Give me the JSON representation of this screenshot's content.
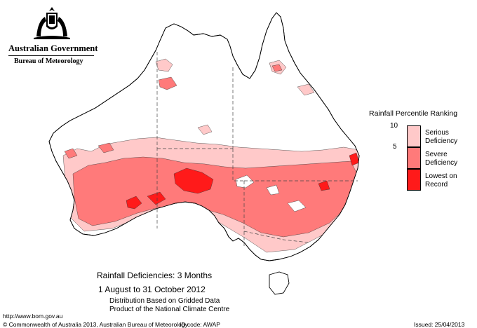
{
  "header": {
    "government": "Australian Government",
    "bureau": "Bureau of Meteorology"
  },
  "map": {
    "title": "Rainfall Deficiencies: 3 Months",
    "period": "1 August to 31 October 2012",
    "subtitle_line1": "Distribution Based on Gridded Data",
    "subtitle_line2": "Product of the National Climate Centre"
  },
  "legend": {
    "title": "Rainfall Percentile Ranking",
    "ticks": [
      "10",
      "5"
    ],
    "classes": [
      {
        "label_line1": "Serious",
        "label_line2": "Deficiency",
        "color": "#ffc9c9"
      },
      {
        "label_line1": "Severe",
        "label_line2": "Deficiency",
        "color": "#ff7a7a"
      },
      {
        "label_line1": "Lowest on",
        "label_line2": "Record",
        "color": "#ff1a1a"
      }
    ]
  },
  "footer": {
    "url": "http://www.bom.gov.au",
    "copyright": "© Commonwealth of Australia 2013, Australian Bureau of Meteorology",
    "id_code": "ID code: AWAP",
    "issued": "Issued: 25/04/2013"
  }
}
